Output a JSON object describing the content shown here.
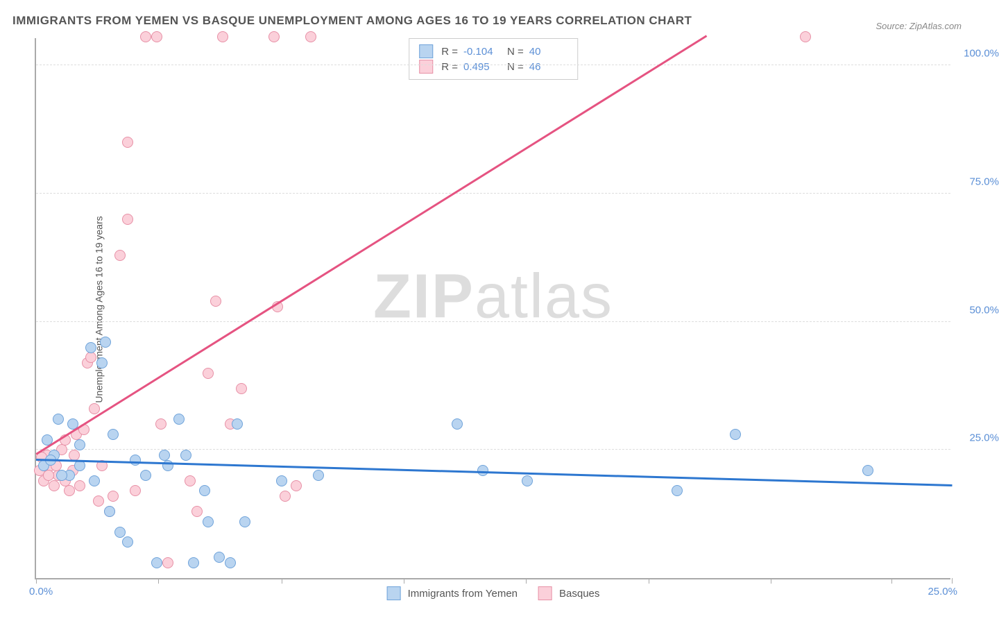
{
  "title": "IMMIGRANTS FROM YEMEN VS BASQUE UNEMPLOYMENT AMONG AGES 16 TO 19 YEARS CORRELATION CHART",
  "source": "Source: ZipAtlas.com",
  "ylabel": "Unemployment Among Ages 16 to 19 years",
  "watermark_bold": "ZIP",
  "watermark_rest": "atlas",
  "chart": {
    "type": "scatter",
    "xlim": [
      0,
      25
    ],
    "ylim": [
      0,
      105.6
    ],
    "xtick_positions": [
      0,
      3.33,
      6.7,
      10.03,
      13.38,
      16.72,
      20.06,
      23.35,
      25
    ],
    "xtick_label_0": "0.0%",
    "xtick_label_last": "25.0%",
    "ytick_positions": [
      25,
      50,
      75,
      100
    ],
    "ytick_labels": [
      "25.0%",
      "50.0%",
      "75.0%",
      "100.0%"
    ],
    "grid_color": "#dddddd",
    "background_color": "#ffffff",
    "point_radius": 8,
    "series": [
      {
        "name": "Immigrants from Yemen",
        "color_fill": "#b9d4f0",
        "color_stroke": "#6fa3da",
        "R": "-0.104",
        "N": "40",
        "trend": {
          "x1": 0,
          "y1": 23.0,
          "x2": 25,
          "y2": 18.0,
          "color": "#2d77d0"
        },
        "points": [
          [
            0.2,
            22
          ],
          [
            0.3,
            27
          ],
          [
            0.5,
            24
          ],
          [
            0.6,
            31
          ],
          [
            0.9,
            20
          ],
          [
            1.0,
            30
          ],
          [
            1.2,
            26
          ],
          [
            1.5,
            45
          ],
          [
            1.6,
            19
          ],
          [
            1.8,
            42
          ],
          [
            1.9,
            46
          ],
          [
            2.1,
            28
          ],
          [
            2.3,
            9
          ],
          [
            2.5,
            7
          ],
          [
            2.7,
            23
          ],
          [
            3.0,
            20
          ],
          [
            3.3,
            3
          ],
          [
            3.5,
            24
          ],
          [
            3.6,
            22
          ],
          [
            3.9,
            31
          ],
          [
            4.1,
            24
          ],
          [
            4.3,
            3
          ],
          [
            4.6,
            17
          ],
          [
            4.7,
            11
          ],
          [
            5.0,
            4
          ],
          [
            5.3,
            3
          ],
          [
            5.5,
            30
          ],
          [
            5.7,
            11
          ],
          [
            6.7,
            19
          ],
          [
            7.7,
            20
          ],
          [
            11.5,
            30
          ],
          [
            12.2,
            21
          ],
          [
            13.4,
            19
          ],
          [
            17.5,
            17
          ],
          [
            19.1,
            28
          ],
          [
            22.7,
            21
          ],
          [
            1.2,
            22
          ],
          [
            0.4,
            23
          ],
          [
            0.7,
            20
          ],
          [
            2.0,
            13
          ]
        ]
      },
      {
        "name": "Basques",
        "color_fill": "#fbd0da",
        "color_stroke": "#e790a6",
        "R": "0.495",
        "N": "46",
        "trend": {
          "x1": 0,
          "y1": 24.0,
          "x2": 18.3,
          "y2": 105.6,
          "color": "#e55381"
        },
        "points": [
          [
            0.1,
            21
          ],
          [
            0.2,
            19
          ],
          [
            0.3,
            24
          ],
          [
            0.4,
            22
          ],
          [
            0.5,
            18
          ],
          [
            0.6,
            20
          ],
          [
            0.7,
            25
          ],
          [
            0.8,
            19
          ],
          [
            0.9,
            17
          ],
          [
            1.0,
            21
          ],
          [
            1.1,
            28
          ],
          [
            1.2,
            18
          ],
          [
            1.3,
            29
          ],
          [
            1.4,
            42
          ],
          [
            1.5,
            43
          ],
          [
            1.6,
            33
          ],
          [
            1.7,
            15
          ],
          [
            1.8,
            22
          ],
          [
            2.0,
            13
          ],
          [
            2.1,
            16
          ],
          [
            2.3,
            63
          ],
          [
            2.5,
            70
          ],
          [
            2.5,
            85
          ],
          [
            2.7,
            17
          ],
          [
            3.0,
            105.6
          ],
          [
            3.3,
            105.6
          ],
          [
            3.4,
            30
          ],
          [
            3.6,
            3
          ],
          [
            4.2,
            19
          ],
          [
            4.4,
            13
          ],
          [
            4.7,
            40
          ],
          [
            4.9,
            54
          ],
          [
            5.1,
            105.6
          ],
          [
            5.3,
            30
          ],
          [
            5.6,
            37
          ],
          [
            6.5,
            105.6
          ],
          [
            6.6,
            53
          ],
          [
            6.8,
            16
          ],
          [
            7.1,
            18
          ],
          [
            7.5,
            105.6
          ],
          [
            21.0,
            105.6
          ],
          [
            0.15,
            23.5
          ],
          [
            0.35,
            20
          ],
          [
            0.55,
            22
          ],
          [
            0.8,
            27
          ],
          [
            1.05,
            24
          ]
        ]
      }
    ],
    "legend_top_labels": {
      "R": "R =",
      "N": "N ="
    },
    "legend_bottom_labels": [
      "Immigrants from Yemen",
      "Basques"
    ]
  }
}
